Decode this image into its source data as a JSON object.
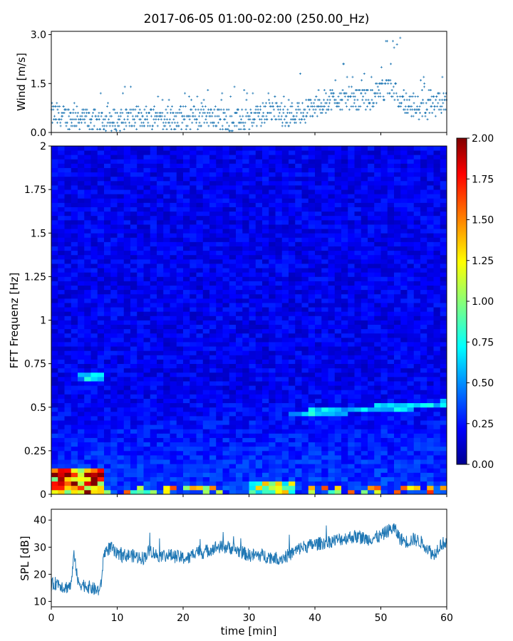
{
  "title": "2017-06-05 01:00-02:00 (250.00_Hz)",
  "chart_data": [
    {
      "type": "scatter",
      "name": "wind",
      "ylabel": "Wind [m/s]",
      "xlim": [
        0,
        60
      ],
      "ylim": [
        0,
        3.1
      ],
      "yticks": [
        "0.0",
        "1.5",
        "3.0"
      ],
      "marker_color": "#1f77b4",
      "resolution_ms": 0.1,
      "profile_x": [
        0,
        3,
        6,
        9,
        12,
        15,
        18,
        21,
        24,
        27,
        30,
        33,
        36,
        39,
        42,
        45,
        48,
        51,
        54,
        57,
        60
      ],
      "profile_y": [
        0.55,
        0.45,
        0.4,
        0.35,
        0.4,
        0.5,
        0.45,
        0.45,
        0.5,
        0.35,
        0.4,
        0.65,
        0.55,
        0.7,
        1.0,
        1.05,
        1.0,
        1.35,
        0.9,
        0.7,
        0.95
      ],
      "max_y": 3.0
    },
    {
      "type": "heatmap",
      "name": "spectrogram",
      "ylabel": "FFT Frequenz [Hz]",
      "xlim": [
        0,
        60
      ],
      "ylim": [
        0,
        2
      ],
      "yticks": [
        "0",
        "0.25",
        "0.5",
        "0.75",
        "1",
        "1.25",
        "1.5",
        "1.75",
        "2"
      ],
      "colormap": "jet",
      "colorbar": {
        "range": [
          0,
          2
        ],
        "ticks": [
          "0.00",
          "0.25",
          "0.50",
          "0.75",
          "1.00",
          "1.25",
          "1.50",
          "1.75",
          "2.00"
        ]
      },
      "features": [
        {
          "desc": "strong low-frequency energy",
          "x_range": [
            0,
            8
          ],
          "freq_range": [
            0,
            0.12
          ],
          "level": 1.6
        },
        {
          "desc": "line near 0.67 Hz",
          "x_range": [
            4,
            7.5
          ],
          "freq_range": [
            0.66,
            0.68
          ],
          "level": 0.6
        },
        {
          "desc": "rising tonal line",
          "x_range": [
            36,
            60
          ],
          "freq_start": 0.46,
          "freq_end": 0.52,
          "level": 0.7
        },
        {
          "desc": "low-frequency bursts",
          "x_range": [
            30,
            37
          ],
          "freq_range": [
            0,
            0.06
          ],
          "level": 1.0
        }
      ],
      "background_level": 0.22
    },
    {
      "type": "line",
      "name": "spl",
      "ylabel": "SPL [dB]",
      "xlabel": "time [min]",
      "xlim": [
        0,
        60
      ],
      "ylim": [
        8,
        44
      ],
      "xticks": [
        "0",
        "10",
        "20",
        "30",
        "40",
        "50",
        "60"
      ],
      "yticks": [
        "10",
        "20",
        "30",
        "40"
      ],
      "line_color": "#1f77b4",
      "x": [
        0,
        1,
        2,
        3,
        3.5,
        4,
        5,
        6,
        7,
        7.5,
        8,
        9,
        10,
        12,
        14,
        15,
        16,
        18,
        20,
        21,
        22,
        23,
        25,
        27,
        29,
        30,
        32,
        34,
        35,
        36,
        38,
        40,
        42,
        44,
        46,
        48,
        50,
        51,
        52,
        53,
        54,
        55,
        56,
        57,
        58,
        59,
        60
      ],
      "y": [
        16,
        17,
        15,
        16,
        28,
        17,
        16,
        15,
        14,
        15,
        28,
        30,
        27,
        27,
        26,
        29,
        27,
        27,
        26,
        26,
        29,
        28,
        30,
        30,
        28,
        27,
        27,
        26,
        26,
        27,
        30,
        31,
        32,
        33,
        34,
        33,
        34,
        36,
        37,
        33,
        32,
        33,
        32,
        30,
        27,
        31,
        32
      ],
      "band": 2.5
    }
  ]
}
